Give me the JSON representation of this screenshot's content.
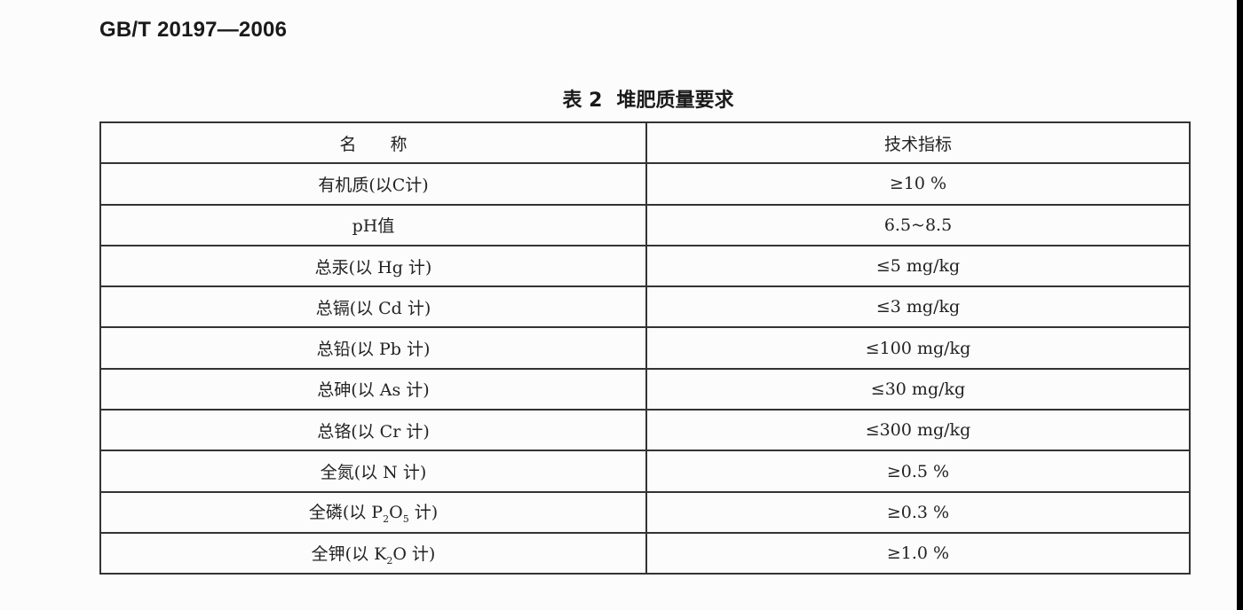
{
  "document": {
    "standard_number": "GB/T 20197—2006",
    "table_caption": {
      "number": "表 2",
      "title": "堆肥质量要求"
    },
    "table": {
      "headers": [
        "名　　称",
        "技术指标"
      ],
      "rows": [
        {
          "name": "有机质(以C计)",
          "value": "≥10 %"
        },
        {
          "name": "pH值",
          "value": "6.5~8.5"
        },
        {
          "name": "总汞(以 Hg 计)",
          "value": "≤5 mg/kg"
        },
        {
          "name": "总镉(以 Cd 计)",
          "value": "≤3 mg/kg"
        },
        {
          "name": "总铅(以 Pb 计)",
          "value": "≤100 mg/kg"
        },
        {
          "name": "总砷(以 As 计)",
          "value": "≤30 mg/kg"
        },
        {
          "name": "总铬(以 Cr 计)",
          "value": "≤300 mg/kg"
        },
        {
          "name": "全氮(以 N 计)",
          "value": "≥0.5 %"
        },
        {
          "name_parts": [
            "全磷(以 P",
            "2",
            "O",
            "5",
            " 计)"
          ],
          "value": "≥0.3 %"
        },
        {
          "name_parts": [
            "全钾(以 K",
            "2",
            "O 计)"
          ],
          "value": "≥1.0 %"
        }
      ]
    }
  }
}
